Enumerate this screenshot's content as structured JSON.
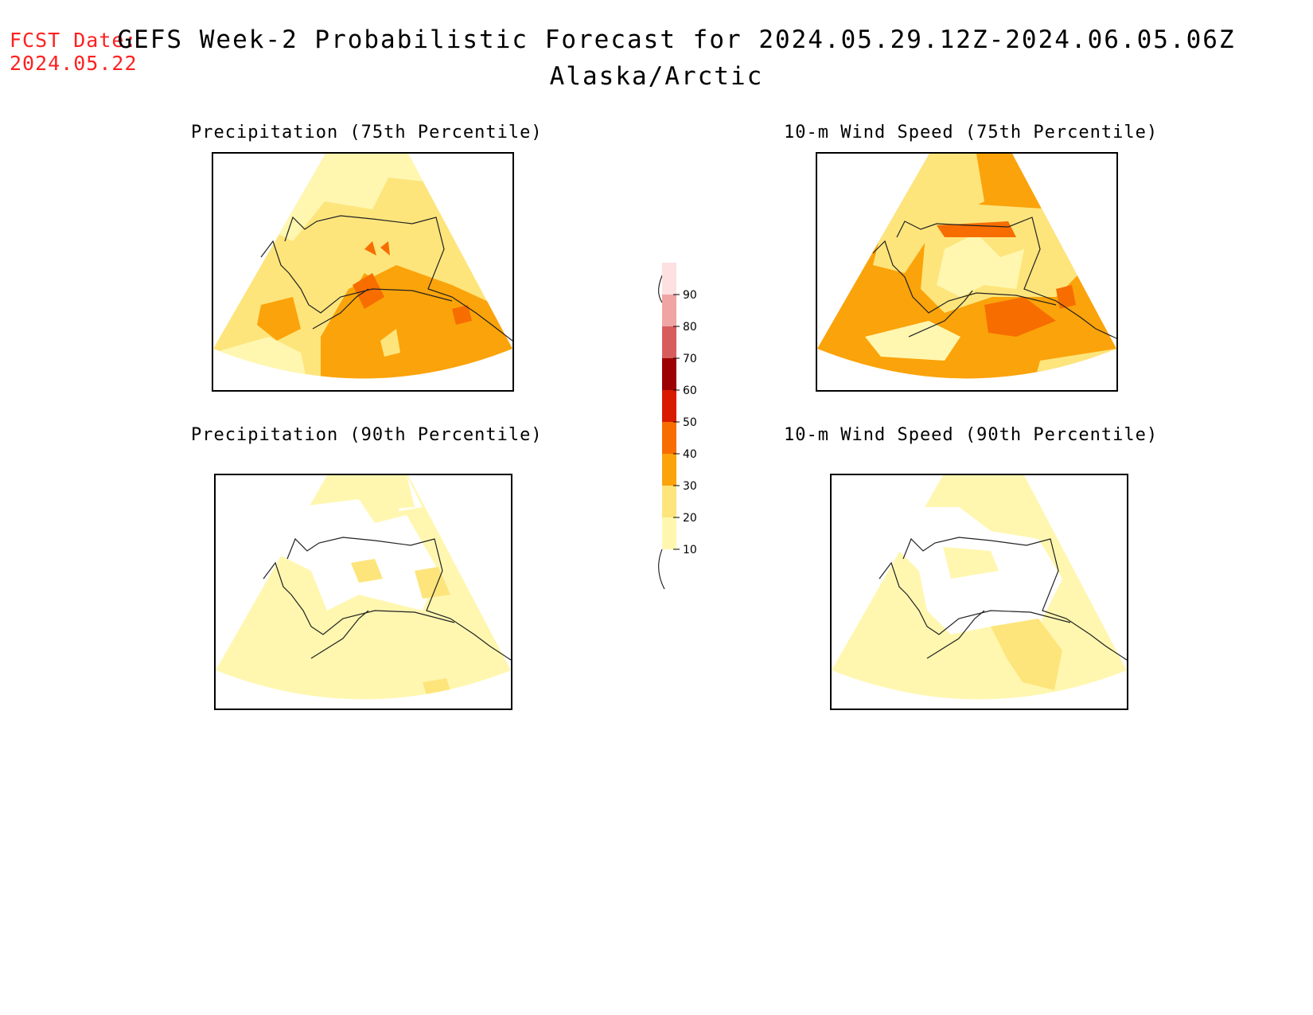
{
  "header": {
    "fcst_label": "FCST Date:",
    "fcst_date": "2024.05.22",
    "title": "GEFS Week-2 Probabilistic Forecast for 2024.05.29.12Z-2024.06.05.06Z",
    "region": "Alaska/Arctic"
  },
  "panels": [
    {
      "title": "Precipitation (75th Percentile)",
      "dominant_level": 30
    },
    {
      "title": "10-m Wind Speed (75th Percentile)",
      "dominant_level": 30
    },
    {
      "title": "Precipitation (90th Percentile)",
      "dominant_level": 10
    },
    {
      "title": "10-m Wind Speed (90th Percentile)",
      "dominant_level": 10
    }
  ],
  "legend": {
    "levels": [
      "10",
      "20",
      "30",
      "40",
      "50",
      "60",
      "70",
      "80",
      "90"
    ],
    "colors": {
      "lt10": "#ffffff",
      "10": "#fff7b0",
      "20": "#fde57c",
      "30": "#fba30a",
      "40": "#f76d00",
      "50": "#d81a00",
      "60": "#9c0000",
      "70": "#d75d5d",
      "80": "#f0a4a4",
      "90": "#fde0e0"
    }
  }
}
